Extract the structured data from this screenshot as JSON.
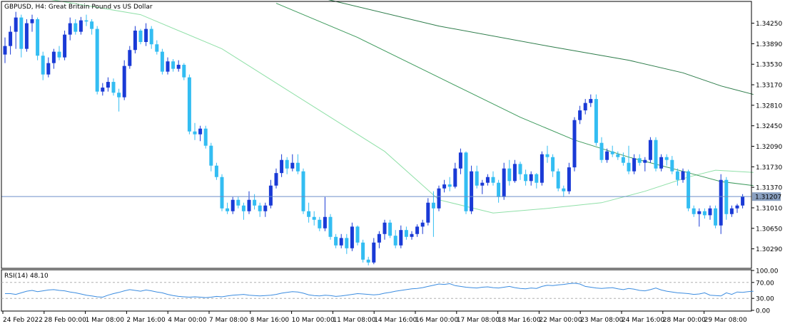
{
  "symbol_title": "GBPUSD, H4:  Great Britain Pound vs US Dollar",
  "rsi_label": "RSI(14) 48.10",
  "colors": {
    "bull_candle": "#1a3ad6",
    "bear_candle": "#33bdf2",
    "ma_fast": "#90e0a8",
    "ma_mid": "#3d9a5c",
    "ma_slow": "#2d7c4a",
    "rsi_line": "#3b8ce0",
    "bid_line": "#6d8fc9",
    "price_badge": "#8aa0c0",
    "axis": "#000000",
    "level_lines": "#b0b0b0"
  },
  "chart_data": [
    {
      "type": "candlestick",
      "title": "GBPUSD, H4:  Great Britain Pound vs US Dollar",
      "price_axis_ticks": [
        "1.34250",
        "1.33890",
        "1.33530",
        "1.33170",
        "1.32810",
        "1.32450",
        "1.32090",
        "1.31730",
        "1.31370",
        "1.31010",
        "1.30650",
        "1.30290"
      ],
      "ylim": [
        1.2996,
        1.3462
      ],
      "current_price": "1.31207",
      "time_axis_labels": [
        "24 Feb 2022",
        "28 Feb 00:00",
        "1 Mar 08:00",
        "2 Mar 16:00",
        "4 Mar 00:00",
        "7 Mar 08:00",
        "8 Mar 16:00",
        "10 Mar 00:00",
        "11 Mar 08:00",
        "14 Mar 16:00",
        "16 Mar 00:00",
        "17 Mar 08:00",
        "18 Mar 16:00",
        "22 Mar 00:00",
        "23 Mar 08:00",
        "24 Mar 16:00",
        "28 Mar 00:00",
        "29 Mar 08:00"
      ],
      "candles_ohlc": [
        [
          1.337,
          1.34,
          1.3355,
          1.3385
        ],
        [
          1.3385,
          1.342,
          1.337,
          1.341
        ],
        [
          1.341,
          1.3445,
          1.338,
          1.3435
        ],
        [
          1.3435,
          1.344,
          1.3365,
          1.338
        ],
        [
          1.338,
          1.3432,
          1.3375,
          1.3425
        ],
        [
          1.3425,
          1.344,
          1.341,
          1.3432
        ],
        [
          1.3432,
          1.3435,
          1.336,
          1.3368
        ],
        [
          1.3368,
          1.3375,
          1.3325,
          1.3335
        ],
        [
          1.3335,
          1.3365,
          1.333,
          1.3355
        ],
        [
          1.3355,
          1.338,
          1.3345,
          1.3375
        ],
        [
          1.3375,
          1.3385,
          1.336,
          1.3365
        ],
        [
          1.3365,
          1.3412,
          1.336,
          1.3405
        ],
        [
          1.3405,
          1.3435,
          1.3395,
          1.3425
        ],
        [
          1.3425,
          1.3432,
          1.3405,
          1.341
        ],
        [
          1.341,
          1.3436,
          1.3405,
          1.343
        ],
        [
          1.343,
          1.344,
          1.342,
          1.3428
        ],
        [
          1.3428,
          1.3432,
          1.3405,
          1.3415
        ],
        [
          1.3415,
          1.342,
          1.33,
          1.3305
        ],
        [
          1.3305,
          1.332,
          1.3298,
          1.3312
        ],
        [
          1.3312,
          1.333,
          1.3305,
          1.3322
        ],
        [
          1.3322,
          1.3328,
          1.3298,
          1.3303
        ],
        [
          1.3303,
          1.331,
          1.327,
          1.3295
        ],
        [
          1.3295,
          1.336,
          1.329,
          1.335
        ],
        [
          1.335,
          1.3385,
          1.3345,
          1.3378
        ],
        [
          1.3378,
          1.342,
          1.3372,
          1.3412
        ],
        [
          1.3412,
          1.3415,
          1.3388,
          1.3392
        ],
        [
          1.3392,
          1.3425,
          1.3385,
          1.3415
        ],
        [
          1.3415,
          1.342,
          1.338,
          1.3388
        ],
        [
          1.3388,
          1.3395,
          1.337,
          1.3375
        ],
        [
          1.3375,
          1.338,
          1.3335,
          1.334
        ],
        [
          1.334,
          1.3365,
          1.3335,
          1.3358
        ],
        [
          1.3358,
          1.3362,
          1.334,
          1.3345
        ],
        [
          1.3345,
          1.336,
          1.334,
          1.3352
        ],
        [
          1.3352,
          1.3355,
          1.3325,
          1.333
        ],
        [
          1.333,
          1.3335,
          1.323,
          1.3235
        ],
        [
          1.3235,
          1.325,
          1.322,
          1.323
        ],
        [
          1.323,
          1.3245,
          1.3218,
          1.324
        ],
        [
          1.324,
          1.3245,
          1.3205,
          1.321
        ],
        [
          1.321,
          1.3215,
          1.3165,
          1.3175
        ],
        [
          1.3175,
          1.318,
          1.315,
          1.3155
        ],
        [
          1.3155,
          1.316,
          1.3095,
          1.31
        ],
        [
          1.31,
          1.311,
          1.309,
          1.3095
        ],
        [
          1.3095,
          1.312,
          1.309,
          1.3115
        ],
        [
          1.3115,
          1.312,
          1.31,
          1.3105
        ],
        [
          1.3105,
          1.311,
          1.308,
          1.3095
        ],
        [
          1.3095,
          1.313,
          1.309,
          1.3115
        ],
        [
          1.3115,
          1.3125,
          1.3098,
          1.3105
        ],
        [
          1.3105,
          1.311,
          1.3085,
          1.3095
        ],
        [
          1.3095,
          1.311,
          1.3085,
          1.3105
        ],
        [
          1.3105,
          1.315,
          1.31,
          1.314
        ],
        [
          1.314,
          1.317,
          1.3135,
          1.3162
        ],
        [
          1.3162,
          1.3195,
          1.3155,
          1.3185
        ],
        [
          1.3185,
          1.319,
          1.316,
          1.317
        ],
        [
          1.317,
          1.3195,
          1.3165,
          1.318
        ],
        [
          1.318,
          1.3195,
          1.316,
          1.3165
        ],
        [
          1.3165,
          1.317,
          1.309,
          1.3095
        ],
        [
          1.3095,
          1.311,
          1.3075,
          1.3085
        ],
        [
          1.3085,
          1.3095,
          1.307,
          1.308
        ],
        [
          1.308,
          1.3085,
          1.306,
          1.3065
        ],
        [
          1.3065,
          1.312,
          1.306,
          1.3085
        ],
        [
          1.3085,
          1.309,
          1.3045,
          1.305
        ],
        [
          1.305,
          1.3055,
          1.303,
          1.3035
        ],
        [
          1.3035,
          1.3055,
          1.303,
          1.3048
        ],
        [
          1.3048,
          1.3055,
          1.302,
          1.303
        ],
        [
          1.303,
          1.3075,
          1.3025,
          1.3068
        ],
        [
          1.3068,
          1.307,
          1.3035,
          1.304
        ],
        [
          1.304,
          1.3045,
          1.3005,
          1.301
        ],
        [
          1.301,
          1.3015,
          1.3,
          1.3005
        ],
        [
          1.3005,
          1.3048,
          1.3002,
          1.304
        ],
        [
          1.304,
          1.306,
          1.303,
          1.3055
        ],
        [
          1.3055,
          1.308,
          1.3045,
          1.3075
        ],
        [
          1.3075,
          1.308,
          1.3048,
          1.3052
        ],
        [
          1.3052,
          1.3062,
          1.303,
          1.3035
        ],
        [
          1.3035,
          1.307,
          1.303,
          1.3062
        ],
        [
          1.3062,
          1.3068,
          1.3045,
          1.305
        ],
        [
          1.305,
          1.306,
          1.3045,
          1.3055
        ],
        [
          1.3055,
          1.3072,
          1.305,
          1.3068
        ],
        [
          1.3068,
          1.308,
          1.3055,
          1.3075
        ],
        [
          1.3075,
          1.3118,
          1.307,
          1.311
        ],
        [
          1.311,
          1.313,
          1.305,
          1.31
        ],
        [
          1.31,
          1.314,
          1.3095,
          1.3135
        ],
        [
          1.3135,
          1.315,
          1.3128,
          1.3142
        ],
        [
          1.3142,
          1.3155,
          1.313,
          1.3138
        ],
        [
          1.3138,
          1.318,
          1.3135,
          1.317
        ],
        [
          1.317,
          1.3205,
          1.316,
          1.3198
        ],
        [
          1.3198,
          1.32,
          1.309,
          1.3095
        ],
        [
          1.3095,
          1.3175,
          1.309,
          1.3165
        ],
        [
          1.3165,
          1.3175,
          1.3135,
          1.314
        ],
        [
          1.314,
          1.315,
          1.3125,
          1.3145
        ],
        [
          1.3145,
          1.316,
          1.314,
          1.3155
        ],
        [
          1.3155,
          1.3165,
          1.314,
          1.3145
        ],
        [
          1.3145,
          1.315,
          1.311,
          1.312
        ],
        [
          1.312,
          1.318,
          1.3115,
          1.317
        ],
        [
          1.317,
          1.3185,
          1.314,
          1.3148
        ],
        [
          1.3148,
          1.3185,
          1.3145,
          1.3178
        ],
        [
          1.3178,
          1.3182,
          1.315,
          1.316
        ],
        [
          1.316,
          1.3168,
          1.314,
          1.3148
        ],
        [
          1.3148,
          1.3165,
          1.314,
          1.316
        ],
        [
          1.316,
          1.3162,
          1.3135,
          1.3145
        ],
        [
          1.3145,
          1.32,
          1.314,
          1.3195
        ],
        [
          1.3195,
          1.321,
          1.318,
          1.319
        ],
        [
          1.319,
          1.3195,
          1.3155,
          1.3165
        ],
        [
          1.3165,
          1.317,
          1.313,
          1.3135
        ],
        [
          1.3135,
          1.314,
          1.312,
          1.313
        ],
        [
          1.313,
          1.318,
          1.3125,
          1.3172
        ],
        [
          1.3172,
          1.326,
          1.3165,
          1.3255
        ],
        [
          1.3255,
          1.328,
          1.3248,
          1.3272
        ],
        [
          1.3272,
          1.3292,
          1.3265,
          1.3285
        ],
        [
          1.3285,
          1.33,
          1.3278,
          1.3292
        ],
        [
          1.3292,
          1.33,
          1.321,
          1.3215
        ],
        [
          1.3215,
          1.3225,
          1.318,
          1.3185
        ],
        [
          1.3185,
          1.3205,
          1.318,
          1.32
        ],
        [
          1.32,
          1.321,
          1.319,
          1.3195
        ],
        [
          1.3195,
          1.32,
          1.3185,
          1.319
        ],
        [
          1.319,
          1.3198,
          1.3175,
          1.318
        ],
        [
          1.318,
          1.321,
          1.316,
          1.3165
        ],
        [
          1.3165,
          1.3195,
          1.316,
          1.3188
        ],
        [
          1.3188,
          1.3195,
          1.3175,
          1.318
        ],
        [
          1.318,
          1.319,
          1.3165,
          1.3185
        ],
        [
          1.3185,
          1.3225,
          1.318,
          1.322
        ],
        [
          1.322,
          1.3225,
          1.3165,
          1.317
        ],
        [
          1.317,
          1.3195,
          1.3165,
          1.319
        ],
        [
          1.319,
          1.3195,
          1.3175,
          1.3185
        ],
        [
          1.3185,
          1.3192,
          1.316,
          1.3165
        ],
        [
          1.3165,
          1.317,
          1.314,
          1.315
        ],
        [
          1.315,
          1.317,
          1.3145,
          1.3165
        ],
        [
          1.3165,
          1.3168,
          1.3095,
          1.31
        ],
        [
          1.31,
          1.3105,
          1.3085,
          1.309
        ],
        [
          1.309,
          1.31,
          1.3068,
          1.3095
        ],
        [
          1.3095,
          1.31,
          1.3082,
          1.3088
        ],
        [
          1.3088,
          1.3105,
          1.308,
          1.31
        ],
        [
          1.31,
          1.3105,
          1.3065,
          1.307
        ],
        [
          1.307,
          1.316,
          1.3055,
          1.315
        ],
        [
          1.315,
          1.3155,
          1.308,
          1.309
        ],
        [
          1.309,
          1.3105,
          1.3085,
          1.31
        ],
        [
          1.31,
          1.3108,
          1.3092,
          1.3105
        ],
        [
          1.3105,
          1.3125,
          1.31,
          1.3121
        ]
      ],
      "moving_averages": [
        {
          "color_key": "ma_fast",
          "points_price": [
            [
              0,
              1.348
            ],
            [
              25,
              1.344
            ],
            [
              40,
              1.338
            ],
            [
              55,
              1.329
            ],
            [
              70,
              1.32
            ],
            [
              80,
              1.3115
            ],
            [
              90,
              1.3092
            ],
            [
              100,
              1.31
            ],
            [
              110,
              1.311
            ],
            [
              118,
              1.313
            ],
            [
              126,
              1.3155
            ],
            [
              131,
              1.3167
            ],
            [
              138,
              1.3163
            ]
          ]
        },
        {
          "color_key": "ma_mid",
          "points_price": [
            [
              50,
              1.346
            ],
            [
              65,
              1.34
            ],
            [
              80,
              1.333
            ],
            [
              95,
              1.326
            ],
            [
              105,
              1.322
            ],
            [
              115,
              1.319
            ],
            [
              125,
              1.3165
            ],
            [
              132,
              1.3147
            ],
            [
              138,
              1.314
            ]
          ]
        },
        {
          "color_key": "ma_slow",
          "points_price": [
            [
              58,
              1.347
            ],
            [
              80,
              1.342
            ],
            [
              100,
              1.3385
            ],
            [
              115,
              1.336
            ],
            [
              125,
              1.3338
            ],
            [
              132,
              1.3315
            ],
            [
              138,
              1.33
            ]
          ]
        }
      ]
    },
    {
      "type": "line",
      "title": "RSI(14) 48.10",
      "ylim": [
        0,
        100
      ],
      "level_ticks": [
        "100.00",
        "70.00",
        "30.00",
        "0.00"
      ],
      "levels": [
        70,
        30
      ],
      "values": [
        42,
        42,
        40,
        44,
        48,
        50,
        47,
        49,
        51,
        52,
        50,
        49,
        46,
        44,
        41,
        38,
        36,
        34,
        33,
        38,
        42,
        45,
        49,
        52,
        50,
        48,
        51,
        49,
        46,
        44,
        40,
        37,
        35,
        34,
        33,
        34,
        33,
        32,
        33,
        35,
        34,
        36,
        38,
        39,
        40,
        38,
        37,
        36,
        37,
        38,
        40,
        43,
        45,
        47,
        46,
        43,
        39,
        37,
        36,
        38,
        37,
        35,
        36,
        38,
        40,
        42,
        41,
        40,
        39,
        40,
        43,
        45,
        48,
        50,
        52,
        54,
        55,
        57,
        60,
        63,
        66,
        65,
        67,
        62,
        60,
        58,
        57,
        56,
        58,
        59,
        57,
        56,
        58,
        60,
        57,
        55,
        54,
        56,
        55,
        60,
        63,
        62,
        64,
        65,
        67,
        68,
        66,
        60,
        58,
        56,
        55,
        56,
        57,
        54,
        52,
        55,
        53,
        50,
        49,
        52,
        56,
        51,
        48,
        46,
        44,
        43,
        42,
        40,
        41,
        44,
        38,
        37,
        36,
        44,
        40,
        46,
        45,
        47,
        48
      ]
    }
  ]
}
